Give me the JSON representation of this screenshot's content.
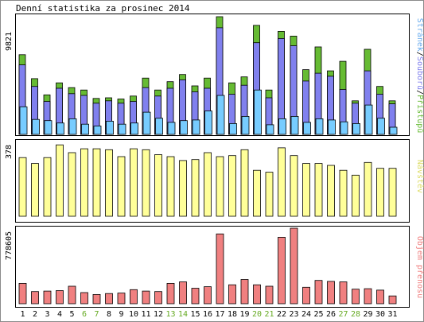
{
  "title": "Denní statistika za prosinec 2014",
  "colors": {
    "green": "#66bb33",
    "blue": "#8080ee",
    "cyan": "#77ccff",
    "yellow": "#ffff99",
    "red": "#f08080",
    "weekend": "#66aa22",
    "text": "#000000"
  },
  "legend": {
    "panel1": [
      {
        "text": "Stránek",
        "color": "#66aaee"
      },
      {
        "text": "/",
        "color": "#000000"
      },
      {
        "text": "Souborů",
        "color": "#8080ee"
      },
      {
        "text": "/",
        "color": "#000000"
      },
      {
        "text": "Přístupů",
        "color": "#66bb33"
      }
    ],
    "panel2": {
      "text": "Návštěv",
      "color": "#dddd66"
    },
    "panel3": {
      "text": "Objem přenosu",
      "color": "#f08080"
    }
  },
  "chart_data": [
    {
      "type": "bar",
      "ylabel": "9821",
      "ylim": [
        0,
        9821
      ],
      "categories": [
        "1",
        "2",
        "3",
        "4",
        "5",
        "6",
        "7",
        "8",
        "9",
        "10",
        "11",
        "12",
        "13",
        "14",
        "15",
        "16",
        "17",
        "18",
        "19",
        "20",
        "21",
        "22",
        "23",
        "24",
        "25",
        "26",
        "27",
        "28",
        "29",
        "30",
        "31"
      ],
      "weekend_days": [
        "6",
        "7",
        "13",
        "14",
        "20",
        "21",
        "27",
        "28"
      ],
      "series": [
        {
          "name": "Přístupů",
          "values": [
            6650,
            4650,
            3300,
            4300,
            3900,
            3700,
            3000,
            3050,
            2950,
            3200,
            4700,
            3700,
            4400,
            5000,
            4050,
            4700,
            9821,
            4300,
            4800,
            9100,
            3700,
            8600,
            8200,
            5400,
            7300,
            5300,
            6100,
            2800,
            7100,
            4000,
            2800
          ]
        },
        {
          "name": "Souborů",
          "values": [
            5800,
            4000,
            2750,
            3850,
            3400,
            3250,
            2600,
            2800,
            2600,
            2750,
            3900,
            3200,
            3850,
            4550,
            3550,
            3850,
            8900,
            3350,
            4100,
            7650,
            3050,
            8000,
            7400,
            4450,
            5100,
            4850,
            3750,
            2600,
            5300,
            3350,
            2550
          ]
        },
        {
          "name": "Stránek",
          "values": [
            2300,
            1250,
            1150,
            950,
            1300,
            850,
            700,
            1100,
            850,
            950,
            1850,
            1350,
            1000,
            1150,
            1200,
            1950,
            3250,
            900,
            1500,
            3700,
            800,
            1300,
            1500,
            1000,
            1300,
            1200,
            1050,
            900,
            2450,
            1350,
            600
          ]
        }
      ]
    },
    {
      "type": "bar",
      "ylabel": "378",
      "ylim": [
        0,
        378
      ],
      "categories": [
        "1",
        "2",
        "3",
        "4",
        "5",
        "6",
        "7",
        "8",
        "9",
        "10",
        "11",
        "12",
        "13",
        "14",
        "15",
        "16",
        "17",
        "18",
        "19",
        "20",
        "21",
        "22",
        "23",
        "24",
        "25",
        "26",
        "27",
        "28",
        "29",
        "30",
        "31"
      ],
      "series": [
        {
          "name": "Návštěv",
          "values": [
            300,
            270,
            300,
            365,
            325,
            345,
            345,
            340,
            305,
            345,
            340,
            315,
            305,
            285,
            290,
            325,
            305,
            310,
            340,
            235,
            225,
            350,
            310,
            270,
            270,
            260,
            235,
            210,
            275,
            245,
            245
          ]
        }
      ]
    },
    {
      "type": "bar",
      "ylabel": "778605",
      "ylim": [
        0,
        778605
      ],
      "categories": [
        "1",
        "2",
        "3",
        "4",
        "5",
        "6",
        "7",
        "8",
        "9",
        "10",
        "11",
        "12",
        "13",
        "14",
        "15",
        "16",
        "17",
        "18",
        "19",
        "20",
        "21",
        "22",
        "23",
        "24",
        "25",
        "26",
        "27",
        "28",
        "29",
        "30",
        "31"
      ],
      "series": [
        {
          "name": "Objem přenosu",
          "values": [
            210000,
            125000,
            130000,
            135000,
            180000,
            115000,
            95000,
            105000,
            110000,
            145000,
            130000,
            125000,
            210000,
            225000,
            160000,
            175000,
            720000,
            195000,
            250000,
            195000,
            180000,
            685000,
            778605,
            170000,
            240000,
            230000,
            225000,
            150000,
            155000,
            140000,
            80000
          ]
        }
      ]
    }
  ]
}
